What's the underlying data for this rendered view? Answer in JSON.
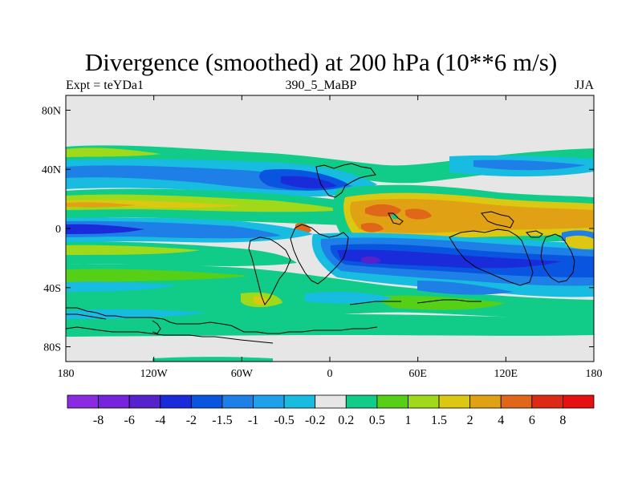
{
  "chart_data": {
    "type": "heatmap",
    "title": "Divergence (smoothed) at 200 hPa (10**6 m/s)",
    "left_label": "Expt = teYDa1",
    "center_label": "390_5_MaBP",
    "right_label": "JJA",
    "xlim": [
      -180,
      180
    ],
    "ylim": [
      -90,
      90
    ],
    "x_ticks": [
      {
        "value": -180,
        "label": "180"
      },
      {
        "value": -120,
        "label": "120W"
      },
      {
        "value": -60,
        "label": "60W"
      },
      {
        "value": 0,
        "label": "0"
      },
      {
        "value": 60,
        "label": "60E"
      },
      {
        "value": 120,
        "label": "120E"
      },
      {
        "value": 180,
        "label": "180"
      }
    ],
    "y_ticks": [
      {
        "value": 80,
        "label": "80N"
      },
      {
        "value": 40,
        "label": "40N"
      },
      {
        "value": 0,
        "label": "0"
      },
      {
        "value": -40,
        "label": "40S"
      },
      {
        "value": -80,
        "label": "80S"
      }
    ],
    "colorbar": {
      "levels": [
        "-8",
        "-6",
        "-4",
        "-2",
        "-1.5",
        "-1",
        "-0.5",
        "-0.2",
        "0.2",
        "0.5",
        "1",
        "1.5",
        "2",
        "4",
        "6",
        "8"
      ],
      "colors": [
        "#8a2be2",
        "#7722dd",
        "#5522cc",
        "#1a2bd9",
        "#0a55e0",
        "#1e7fe6",
        "#1fa0ea",
        "#17bce0",
        "#e6e6e6",
        "#11cc88",
        "#55d016",
        "#a0d91a",
        "#dcc812",
        "#e0a214",
        "#e0661a",
        "#dc2a14",
        "#e61010"
      ]
    },
    "fields": [
      {
        "name": "north-green-band",
        "value_range": "0.5 to 1",
        "lon": [
          -180,
          -20
        ],
        "lat": [
          44,
          56
        ]
      },
      {
        "name": "north-blue-band",
        "value_range": "-1 to -0.5",
        "lon": [
          -180,
          10
        ],
        "lat": [
          28,
          42
        ]
      },
      {
        "name": "equatorial-orange-band",
        "value_range": "2 to 4",
        "lon": [
          10,
          180
        ],
        "lat": [
          -5,
          18
        ]
      },
      {
        "name": "equatorial-orange-west",
        "value_range": "2 to 4",
        "lon": [
          -180,
          -80
        ],
        "lat": [
          5,
          16
        ]
      },
      {
        "name": "equatorial-blue-band",
        "value_range": "-2 to -1.5",
        "lon": [
          -180,
          -30
        ],
        "lat": [
          -5,
          5
        ]
      },
      {
        "name": "southern-blue-band",
        "value_range": "-2 to -1.5",
        "lon": [
          10,
          170
        ],
        "lat": [
          -40,
          -12
        ]
      },
      {
        "name": "southern-green-band",
        "value_range": "0.5 to 1",
        "lon": [
          -180,
          0
        ],
        "lat": [
          -55,
          -30
        ]
      }
    ]
  }
}
